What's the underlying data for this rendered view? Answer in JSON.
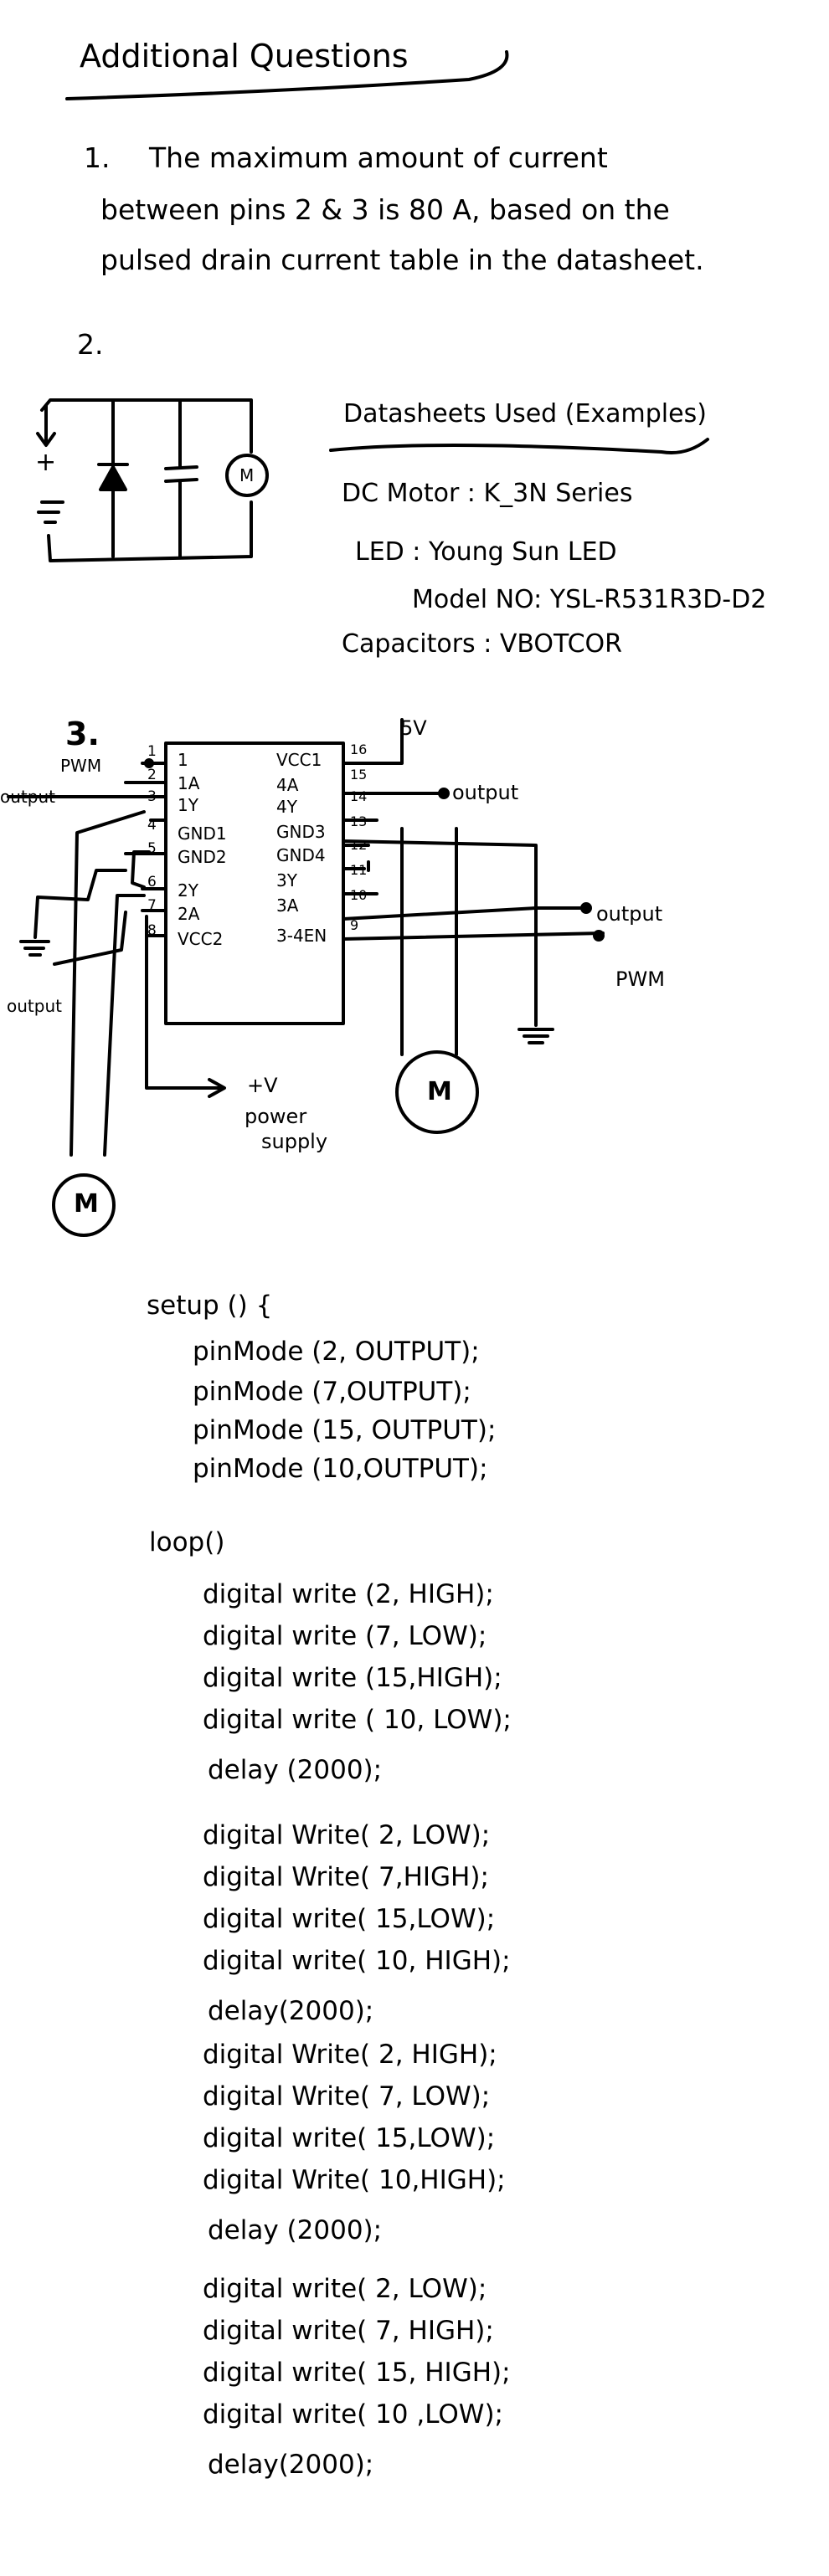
{
  "heading": "Additional Questions",
  "q1": {
    "number": "1.",
    "line1": "The maximum amount of current",
    "line2": "between pins 2 & 3 is 80 A, based on the",
    "line3": "pulsed drain current table in the datasheet."
  },
  "q2": {
    "number": "2.",
    "plus": "+",
    "minus": "=",
    "motor": "M",
    "datasheets_title": "Datasheets Used (Examples)",
    "dc_motor": "DC Motor : K_3N Series",
    "led": "LED : Young Sun LED",
    "model": "Model NO: YSL-R531R3D-D2",
    "capacitors": "Capacitors : VBOTCOR"
  },
  "q3": {
    "number": "3.",
    "five_v": "5V",
    "pwm_left": "PWM",
    "output_left_top": "output",
    "output_left_bottom": "output",
    "output_right_top": "output",
    "output_right_mid": "output",
    "pwm_right": "PWM",
    "power": "+V",
    "power_line2": "power",
    "power_line3": "supply",
    "motor_left": "M",
    "motor_right": "M",
    "left_pins": [
      {
        "num": "1",
        "name": "1"
      },
      {
        "num": "2",
        "name": "1A"
      },
      {
        "num": "3",
        "name": "1Y"
      },
      {
        "num": "4",
        "name": "GND1"
      },
      {
        "num": "5",
        "name": "GND2"
      },
      {
        "num": "6",
        "name": "2Y"
      },
      {
        "num": "7",
        "name": "2A"
      },
      {
        "num": "8",
        "name": "VCC2"
      }
    ],
    "right_pins": [
      {
        "num": "16",
        "name": "VCC1"
      },
      {
        "num": "15",
        "name": "4A"
      },
      {
        "num": "14",
        "name": "4Y"
      },
      {
        "num": "13",
        "name": "GND3"
      },
      {
        "num": "12",
        "name": "GND4"
      },
      {
        "num": "11",
        "name": "3Y"
      },
      {
        "num": "10",
        "name": "3A"
      },
      {
        "num": "9",
        "name": "3-4EN"
      }
    ]
  },
  "code": {
    "setup_header": "setup () {",
    "setup_lines": [
      "pinMode (2, OUTPUT);",
      "pinMode (7,OUTPUT);",
      "pinMode (15, OUTPUT);",
      "pinMode (10,OUTPUT);"
    ],
    "loop_header": "loop()",
    "blocks": [
      [
        "digital write (2, HIGH);",
        "digital write (7, LOW);",
        "digital write (15,HIGH);",
        "digital write ( 10, LOW);",
        "delay (2000);"
      ],
      [
        "digital Write( 2, LOW);",
        "digital Write( 7,HIGH);",
        "digital write( 15,LOW);",
        "digital write( 10, HIGH);",
        "delay(2000);"
      ],
      [
        "digital Write( 2, HIGH);",
        "digital Write( 7, LOW);",
        "digital write( 15,LOW);",
        "digital Write( 10,HIGH);",
        "delay (2000);"
      ],
      [
        "digital write( 2, LOW);",
        "digital write( 7, HIGH);",
        "digital write( 15, HIGH);",
        "digital write( 10 ,LOW);",
        "delay(2000);"
      ]
    ]
  }
}
